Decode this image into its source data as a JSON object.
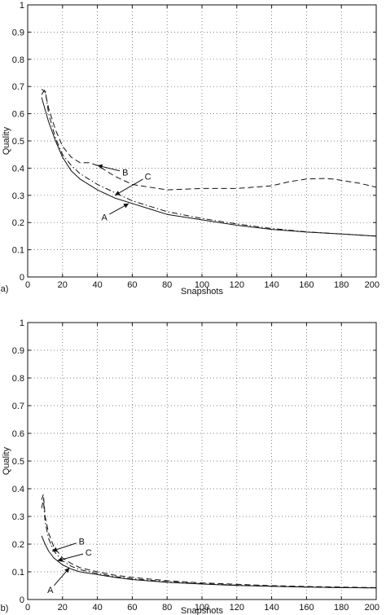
{
  "chart_data": [
    {
      "type": "line",
      "panel_label": "(a)",
      "xlabel": "Snapshots",
      "ylabel": "Quality",
      "xlim": [
        0,
        200
      ],
      "ylim": [
        0,
        1
      ],
      "xticks": [
        "0",
        "20",
        "40",
        "60",
        "80",
        "100",
        "120",
        "140",
        "160",
        "180",
        "200"
      ],
      "yticks": [
        "0",
        "0.1",
        "0.2",
        "0.3",
        "0.4",
        "0.5",
        "0.6",
        "0.7",
        "0.8",
        "0.9",
        "1"
      ],
      "grid": true,
      "series": [
        {
          "name": "A",
          "style": "solid",
          "x": [
            8,
            12,
            16,
            20,
            25,
            30,
            35,
            40,
            50,
            60,
            70,
            80,
            100,
            120,
            140,
            160,
            180,
            200
          ],
          "y": [
            0.66,
            0.57,
            0.5,
            0.44,
            0.39,
            0.36,
            0.34,
            0.32,
            0.29,
            0.27,
            0.25,
            0.23,
            0.21,
            0.19,
            0.175,
            0.165,
            0.158,
            0.15
          ]
        },
        {
          "name": "B",
          "style": "dashed",
          "x": [
            8,
            10,
            12,
            16,
            20,
            25,
            30,
            35,
            40,
            50,
            60,
            70,
            80,
            100,
            120,
            140,
            150,
            160,
            170,
            175,
            180,
            190,
            200
          ],
          "y": [
            0.69,
            0.68,
            0.62,
            0.54,
            0.48,
            0.44,
            0.42,
            0.42,
            0.41,
            0.37,
            0.34,
            0.33,
            0.32,
            0.325,
            0.325,
            0.335,
            0.35,
            0.36,
            0.362,
            0.36,
            0.355,
            0.345,
            0.33
          ]
        },
        {
          "name": "C",
          "style": "dashdot",
          "x": [
            8,
            10,
            12,
            16,
            20,
            25,
            30,
            35,
            40,
            50,
            60,
            70,
            80,
            100,
            120,
            140,
            160,
            180,
            200
          ],
          "y": [
            0.67,
            0.69,
            0.6,
            0.51,
            0.45,
            0.41,
            0.38,
            0.36,
            0.34,
            0.31,
            0.28,
            0.26,
            0.24,
            0.215,
            0.195,
            0.178,
            0.166,
            0.158,
            0.15
          ]
        }
      ],
      "annotations": [
        {
          "text": "B",
          "x": 56,
          "y": 0.385,
          "target_x": 40,
          "target_y": 0.41
        },
        {
          "text": "C",
          "x": 69,
          "y": 0.37,
          "target_x": 50,
          "target_y": 0.3
        },
        {
          "text": "A",
          "x": 44,
          "y": 0.22,
          "target_x": 58,
          "target_y": 0.27
        }
      ]
    },
    {
      "type": "line",
      "panel_label": "(b)",
      "xlabel": "Snapshots",
      "ylabel": "Quality",
      "xlim": [
        0,
        200
      ],
      "ylim": [
        0,
        1
      ],
      "xticks": [
        "0",
        "20",
        "40",
        "60",
        "80",
        "100",
        "120",
        "140",
        "160",
        "180",
        "200"
      ],
      "yticks": [
        "0",
        "0.1",
        "0.2",
        "0.3",
        "0.4",
        "0.5",
        "0.6",
        "0.7",
        "0.8",
        "0.9",
        "1"
      ],
      "grid": true,
      "series": [
        {
          "name": "A",
          "style": "solid",
          "x": [
            8,
            10,
            12,
            15,
            20,
            25,
            30,
            40,
            50,
            60,
            80,
            100,
            120,
            140,
            160,
            180,
            200
          ],
          "y": [
            0.23,
            0.2,
            0.175,
            0.15,
            0.125,
            0.11,
            0.1,
            0.09,
            0.08,
            0.072,
            0.062,
            0.056,
            0.051,
            0.048,
            0.045,
            0.043,
            0.042
          ]
        },
        {
          "name": "B",
          "style": "dashed",
          "x": [
            8,
            9,
            10,
            12,
            15,
            20,
            25,
            30,
            40,
            50,
            60,
            80,
            100,
            120,
            140,
            160,
            180,
            200
          ],
          "y": [
            0.36,
            0.38,
            0.3,
            0.24,
            0.19,
            0.15,
            0.13,
            0.115,
            0.1,
            0.088,
            0.08,
            0.068,
            0.06,
            0.055,
            0.05,
            0.047,
            0.045,
            0.043
          ]
        },
        {
          "name": "C",
          "style": "dashdot",
          "x": [
            8,
            9,
            10,
            12,
            15,
            20,
            25,
            30,
            40,
            50,
            60,
            80,
            100,
            120,
            140,
            160,
            180,
            200
          ],
          "y": [
            0.33,
            0.36,
            0.28,
            0.22,
            0.175,
            0.14,
            0.12,
            0.108,
            0.094,
            0.083,
            0.075,
            0.064,
            0.057,
            0.052,
            0.048,
            0.045,
            0.043,
            0.042
          ]
        }
      ],
      "annotations": [
        {
          "text": "B",
          "x": 31,
          "y": 0.21,
          "target_x": 14,
          "target_y": 0.175
        },
        {
          "text": "C",
          "x": 35,
          "y": 0.17,
          "target_x": 17,
          "target_y": 0.14
        },
        {
          "text": "A",
          "x": 13,
          "y": 0.035,
          "target_x": 24,
          "target_y": 0.115
        }
      ]
    }
  ]
}
